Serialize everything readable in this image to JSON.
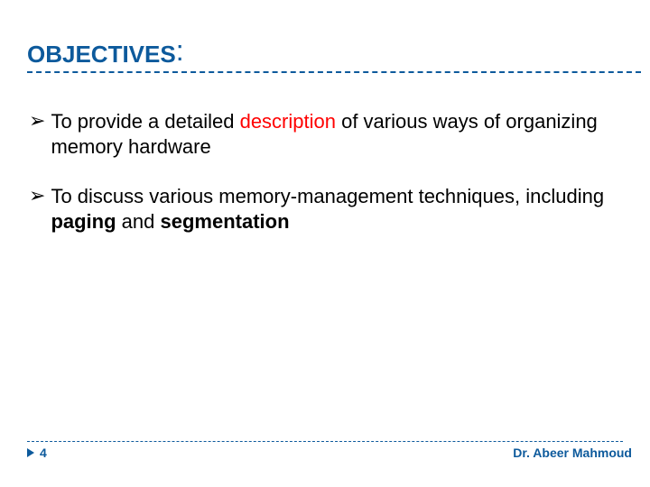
{
  "colors": {
    "title": "#0d5a9c",
    "title_underline": "#0d5a9c",
    "text": "#000000",
    "highlight": "#ff0000",
    "footer_line": "#0d5a9c",
    "triangle": "#0d5a9c",
    "page_num": "#0d5a9c",
    "author": "#0d5a9c",
    "background": "#ffffff"
  },
  "title": {
    "main": "OBJECTIVES",
    "colon": ":"
  },
  "bullets": {
    "glyph": "➢",
    "items": [
      {
        "leading_space": " ",
        "segments": [
          {
            "text": "To provide a detailed ",
            "red": false,
            "bold": false
          },
          {
            "text": "description ",
            "red": true,
            "bold": false
          },
          {
            "text": "of various ways of organizing memory hardware",
            "red": false,
            "bold": false
          }
        ]
      },
      {
        "leading_space": "",
        "segments": [
          {
            "text": "To discuss various memory-management techniques, including ",
            "red": false,
            "bold": false
          },
          {
            "text": "paging ",
            "red": false,
            "bold": true
          },
          {
            "text": "and ",
            "red": false,
            "bold": false
          },
          {
            "text": "segmentation",
            "red": false,
            "bold": true
          }
        ]
      }
    ]
  },
  "footer": {
    "page": "4",
    "author": "Dr. Abeer Mahmoud"
  }
}
